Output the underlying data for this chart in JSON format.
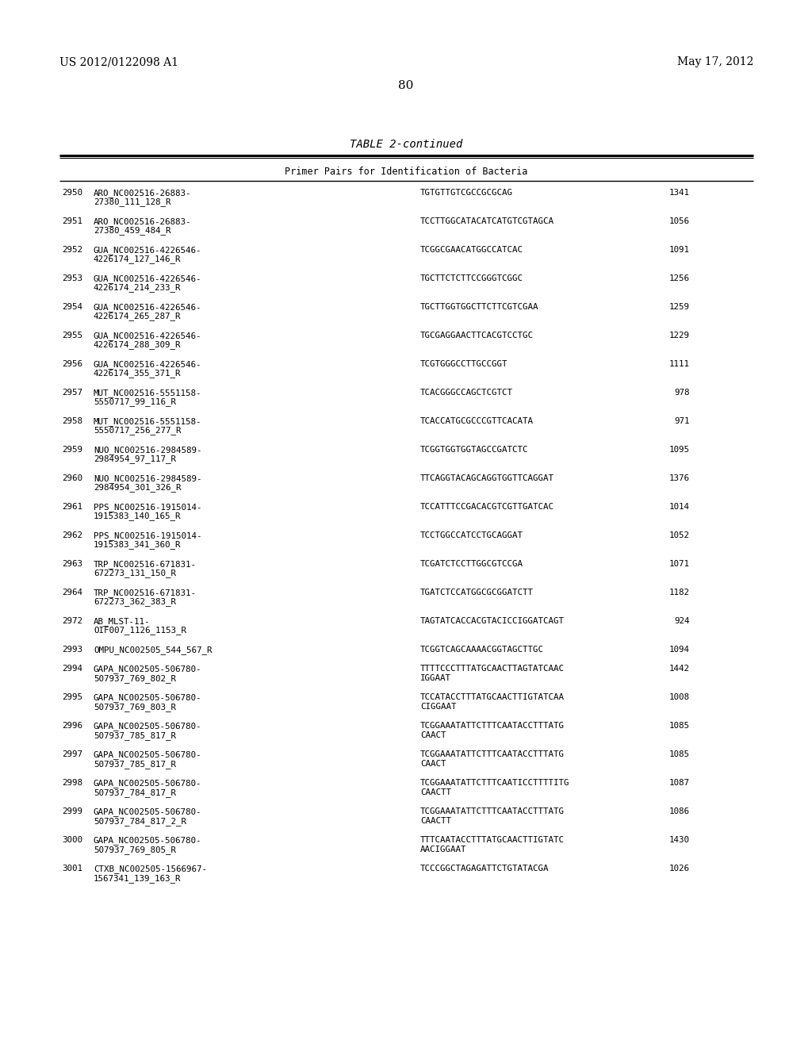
{
  "header_left": "US 2012/0122098 A1",
  "header_right": "May 17, 2012",
  "page_number": "80",
  "table_title": "TABLE 2-continued",
  "table_subtitle": "Primer Pairs for Identification of Bacteria",
  "rows": [
    {
      "num": "2950",
      "name": "ARO_NC002516-26883-\n27380_111_128_R",
      "sequence": "TGTGTTGTCGCCGCGCAG",
      "value": "1341"
    },
    {
      "num": "2951",
      "name": "ARO_NC002516-26883-\n27380_459_484_R",
      "sequence": "TCCTTGGCATACATCATGTCGTAGCA",
      "value": "1056"
    },
    {
      "num": "2952",
      "name": "GUA_NC002516-4226546-\n4226174_127_146_R",
      "sequence": "TCGGCGAACATGGCCATCAC",
      "value": "1091"
    },
    {
      "num": "2953",
      "name": "GUA_NC002516-4226546-\n4226174_214_233_R",
      "sequence": "TGCTTCTCTTCCGGGTCGGC",
      "value": "1256"
    },
    {
      "num": "2954",
      "name": "GUA_NC002516-4226546-\n4226174_265_287_R",
      "sequence": "TGCTTGGTGGCTTCTTCGTCGAA",
      "value": "1259"
    },
    {
      "num": "2955",
      "name": "GUA_NC002516-4226546-\n4226174_288_309_R",
      "sequence": "TGCGAGGAACTTCACGTCCTGC",
      "value": "1229"
    },
    {
      "num": "2956",
      "name": "GUA_NC002516-4226546-\n4226174_355_371_R",
      "sequence": "TCGTGGGCCTTGCCGGT",
      "value": "1111"
    },
    {
      "num": "2957",
      "name": "MUT_NC002516-5551158-\n5550717_99_116_R",
      "sequence": "TCACGGGCCAGCTCGTCT",
      "value": "978"
    },
    {
      "num": "2958",
      "name": "MUT_NC002516-5551158-\n5550717_256_277_R",
      "sequence": "TCACCATGCGCCCGTTCACATA",
      "value": "971"
    },
    {
      "num": "2959",
      "name": "NUO_NC002516-2984589-\n2984954_97_117_R",
      "sequence": "TCGGTGGTGGTAGCCGATCTC",
      "value": "1095"
    },
    {
      "num": "2960",
      "name": "NUO_NC002516-2984589-\n2984954_301_326_R",
      "sequence": "TTCAGGTACAGCAGGTGGTTCAGGAT",
      "value": "1376"
    },
    {
      "num": "2961",
      "name": "PPS_NC002516-1915014-\n1915383_140_165_R",
      "sequence": "TCCATTTCCGACACGTCGTTGATCAC",
      "value": "1014"
    },
    {
      "num": "2962",
      "name": "PPS_NC002516-1915014-\n1915383_341_360_R",
      "sequence": "TCCTGGCCATCCTGCAGGAT",
      "value": "1052"
    },
    {
      "num": "2963",
      "name": "TRP_NC002516-671831-\n672273_131_150_R",
      "sequence": "TCGATCTCCTTGGCGTCCGA",
      "value": "1071"
    },
    {
      "num": "2964",
      "name": "TRP_NC002516-671831-\n672273_362_383_R",
      "sequence": "TGATCTCCATGGCGCGGATCTT",
      "value": "1182"
    },
    {
      "num": "2972",
      "name": "AB_MLST-11-\nOIF007_1126_1153_R",
      "sequence": "TAGTATCACCACGTACICCIGGATCAGT",
      "value": "924"
    },
    {
      "num": "2993",
      "name": "OMPU_NC002505_544_567_R",
      "sequence": "TCGGTCAGCAAAACGGTAGCTTGC",
      "value": "1094"
    },
    {
      "num": "2994",
      "name": "GAPA_NC002505-506780-\n507937_769_802_R",
      "sequence": "TTTTCCCTTTATGCAACTTAGTATCAAC\nIGGAAT",
      "value": "1442"
    },
    {
      "num": "2995",
      "name": "GAPA_NC002505-506780-\n507937_769_803_R",
      "sequence": "TCCATACCTTTATGCAACTTIGTATCAA\nCIGGAAT",
      "value": "1008"
    },
    {
      "num": "2996",
      "name": "GAPA_NC002505-506780-\n507937_785_817_R",
      "sequence": "TCGGAAATATTCTTTCAATACCTTTATG\nCAACT",
      "value": "1085"
    },
    {
      "num": "2997",
      "name": "GAPA_NC002505-506780-\n507937_785_817_R",
      "sequence": "TCGGAAATATTCTTTCAATACCTTTATG\nCAACT",
      "value": "1085"
    },
    {
      "num": "2998",
      "name": "GAPA_NC002505-506780-\n507937_784_817_R",
      "sequence": "TCGGAAATATTCTTTCAATICCTTTTITG\nCAACTT",
      "value": "1087"
    },
    {
      "num": "2999",
      "name": "GAPA_NC002505-506780-\n507937_784_817_2_R",
      "sequence": "TCGGAAATATTCTTTCAATACCTTTATG\nCAACTT",
      "value": "1086"
    },
    {
      "num": "3000",
      "name": "GAPA_NC002505-506780-\n507937_769_805_R",
      "sequence": "TTTCAATACCTTTATGCAACTTIGTATC\nAACIGGAAT",
      "value": "1430"
    },
    {
      "num": "3001",
      "name": "CTXB_NC002505-1566967-\n1567341_139_163_R",
      "sequence": "TCCCGGCTAGAGATTCTGTATACGA",
      "value": "1026"
    }
  ],
  "bg_color": "#ffffff",
  "text_color": "#000000"
}
